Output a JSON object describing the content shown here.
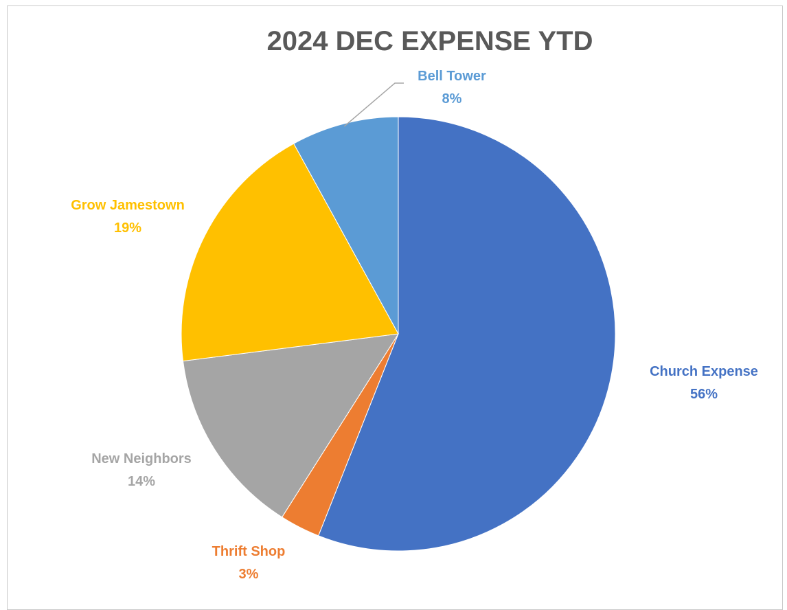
{
  "chart_data": {
    "type": "pie",
    "title": "2024 DEC EXPENSE YTD",
    "slices": [
      {
        "name": "Church Expense",
        "value": 56,
        "percent_label": "56%",
        "color": "#4472C4"
      },
      {
        "name": "Thrift Shop",
        "value": 3,
        "percent_label": "3%",
        "color": "#ED7D31"
      },
      {
        "name": "New Neighbors",
        "value": 14,
        "percent_label": "14%",
        "color": "#A5A5A5"
      },
      {
        "name": "Grow Jamestown",
        "value": 19,
        "percent_label": "19%",
        "color": "#FFC000"
      },
      {
        "name": "Bell Tower",
        "value": 8,
        "percent_label": "8%",
        "color": "#5B9BD5"
      }
    ]
  }
}
